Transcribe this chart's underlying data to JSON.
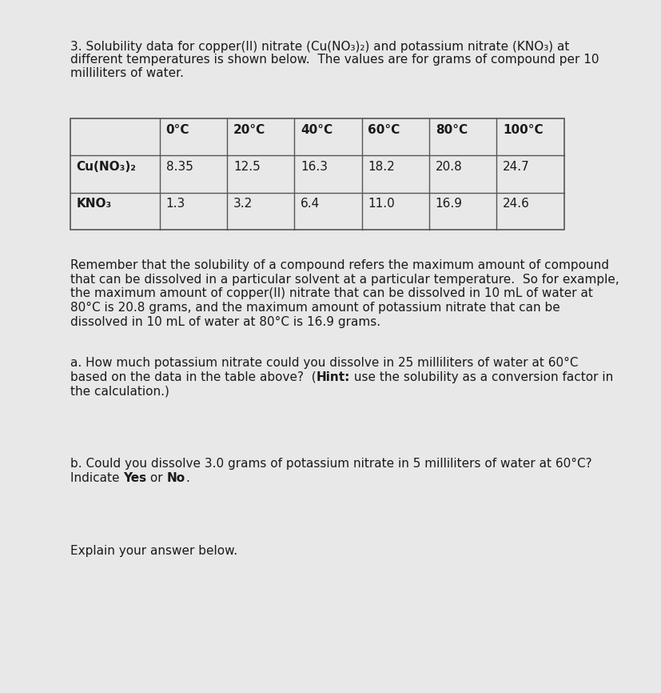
{
  "bg_color": "#e8e8e8",
  "page_color": "#ffffff",
  "text_color": "#1a1a1a",
  "border_color": "#555555",
  "title": "3. Solubility data for copper(II) nitrate (Cu(NO₃)₂) and potassium nitrate (KNO₃) at\ndifferent temperatures is shown below.  The values are for grams of compound per 10\nmilliliters of water.",
  "headers": [
    "",
    "0°C",
    "20°C",
    "40°C",
    "60°C",
    "80°C",
    "100°C"
  ],
  "row1_label": "Cu(NO₃)₂",
  "row1_vals": [
    "8.35",
    "12.5",
    "16.3",
    "18.2",
    "20.8",
    "24.7"
  ],
  "row2_label": "KNO₃",
  "row2_vals": [
    "1.3",
    "3.2",
    "6.4",
    "11.0",
    "16.9",
    "24.6"
  ],
  "para1_lines": [
    "Remember that the solubility of a compound refers the maximum amount of compound",
    "that can be dissolved in a particular solvent at a particular temperature.  So for example,",
    "the maximum amount of copper(II) nitrate that can be dissolved in 10 mL of water at",
    "80°C is 20.8 grams, and the maximum amount of potassium nitrate that can be",
    "dissolved in 10 mL of water at 80°C is 16.9 grams."
  ],
  "para2_line1": "a. How much potassium nitrate could you dissolve in 25 milliliters of water at 60°C",
  "para2_line2_pre": "based on the data in the table above?  (",
  "para2_line2_bold": "Hint:",
  "para2_line2_suf": " use the solubility as a conversion factor in",
  "para2_line3": "the calculation.)",
  "para3_line1": "b. Could you dissolve 3.0 grams of potassium nitrate in 5 milliliters of water at 60°C?",
  "para3_line2_pre": "Indicate ",
  "para3_line2_b1": "Yes",
  "para3_line2_mid": " or ",
  "para3_line2_b2": "No",
  "para3_line2_end": ".",
  "para4": "Explain your answer below.",
  "font_size": 11.0,
  "table_font_size": 11.0
}
